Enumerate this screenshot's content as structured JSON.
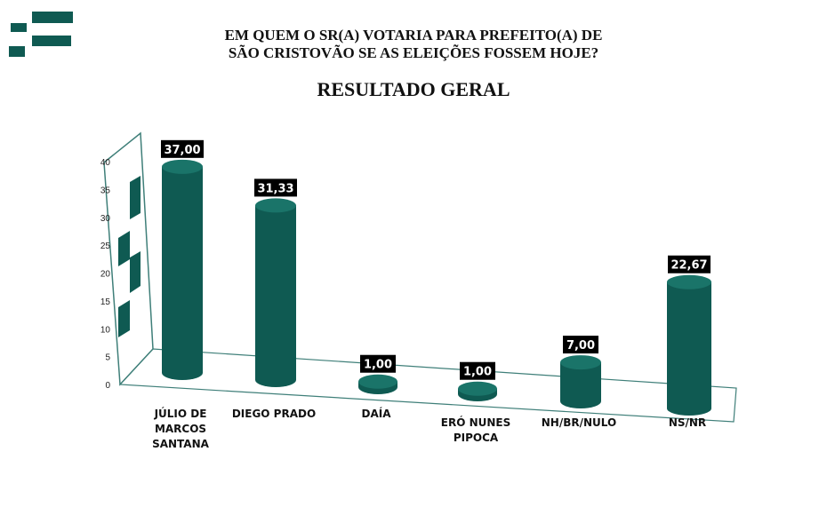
{
  "header": {
    "question_line1": "EM QUEM O SR(A) VOTARIA PARA PREFEITO(A) DE",
    "question_line2": "SÃO CRISTOVÃO SE AS ELEIÇÕES FOSSEM HOJE?",
    "subtitle": "RESULTADO GERAL",
    "logo_icon": "stacked-bars-logo-icon"
  },
  "colors": {
    "bar": "#0f5a52",
    "bar_top": "#1a7469",
    "label_bg": "#000000",
    "axis": "#3f7f79"
  },
  "chart_data": {
    "type": "bar",
    "title": "RESULTADO GERAL",
    "categories": [
      [
        "JÚLIO DE",
        "MARCOS",
        "SANTANA"
      ],
      [
        "DIEGO PRADO"
      ],
      [
        "DAÍA"
      ],
      [
        "ERÓ NUNES",
        "PIPOCA"
      ],
      [
        "NH/BR/NULO"
      ],
      [
        "NS/NR"
      ]
    ],
    "values": [
      37.0,
      31.33,
      1.0,
      1.0,
      7.0,
      22.67
    ],
    "value_labels": [
      "37,00",
      "31,33",
      "1,00",
      "1,00",
      "7,00",
      "22,67"
    ],
    "yticks": [
      "0",
      "5",
      "10",
      "15",
      "20",
      "25",
      "30",
      "35",
      "40"
    ],
    "ylim": [
      0,
      40
    ],
    "xlabel": "",
    "ylabel": ""
  }
}
